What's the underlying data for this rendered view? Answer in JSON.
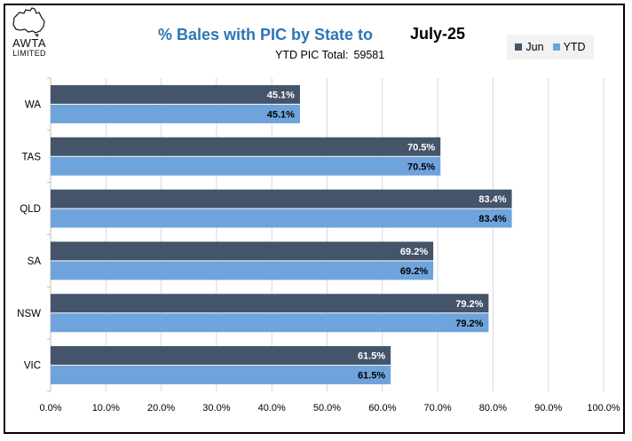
{
  "logo": {
    "line1": "AWTA",
    "line2": "LIMITED"
  },
  "title": "% Bales with PIC by State to",
  "month": "July-25",
  "subtitle": {
    "label": "YTD PIC Total:",
    "value": "59581"
  },
  "colors": {
    "jun": "#44546a",
    "ytd": "#6fa3dc",
    "title": "#2e75b6",
    "grid": "#d9d9d9"
  },
  "chart_data": {
    "type": "bar",
    "orientation": "horizontal",
    "title": "% Bales with PIC by State to July-25",
    "categories": [
      "WA",
      "TAS",
      "QLD",
      "SA",
      "NSW",
      "VIC"
    ],
    "series": [
      {
        "name": "Jun",
        "values": [
          45.1,
          70.5,
          83.4,
          69.2,
          79.2,
          61.5
        ],
        "labels": [
          "45.1%",
          "70.5%",
          "83.4%",
          "69.2%",
          "79.2%",
          "61.5%"
        ]
      },
      {
        "name": "YTD",
        "values": [
          45.1,
          70.5,
          83.4,
          69.2,
          79.2,
          61.5
        ],
        "labels": [
          "45.1%",
          "70.5%",
          "83.4%",
          "69.2%",
          "79.2%",
          "61.5%"
        ]
      }
    ],
    "xlim": [
      0,
      100
    ],
    "xticks": [
      "0.0%",
      "10.0%",
      "20.0%",
      "30.0%",
      "40.0%",
      "50.0%",
      "60.0%",
      "70.0%",
      "80.0%",
      "90.0%",
      "100.0%"
    ],
    "legend_position": "top-right",
    "grid": true
  }
}
